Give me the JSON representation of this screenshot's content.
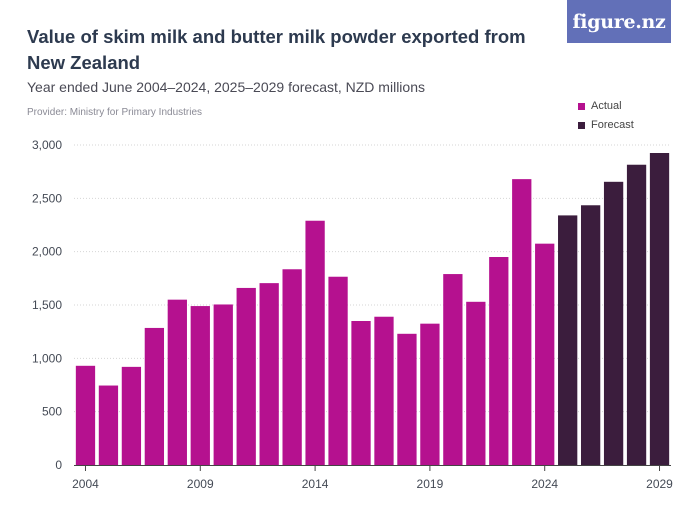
{
  "header": {
    "title": "Value of skim milk and butter milk powder exported from New Zealand",
    "subtitle": "Year ended June 2004–2024, 2025–2029 forecast, NZD millions",
    "provider": "Provider: Ministry for Primary Industries"
  },
  "logo": {
    "text": "figure.nz",
    "color": "#6270b8"
  },
  "legend": {
    "placement": "top-right",
    "items": [
      {
        "label": "Actual",
        "color": "#b5118f"
      },
      {
        "label": "Forecast",
        "color": "#3b1d3d"
      }
    ]
  },
  "chart_data": {
    "type": "bar",
    "title": "Value of skim milk and butter milk powder exported from New Zealand",
    "subtitle": "Year ended June 2004–2024, 2025–2029 forecast, NZD millions",
    "xlabel": "",
    "ylabel": "",
    "ylim": [
      0,
      3000
    ],
    "yticks": [
      "0",
      "500",
      "1,000",
      "1,500",
      "2,000",
      "2,500",
      "3,000"
    ],
    "ytick_values": [
      0,
      500,
      1000,
      1500,
      2000,
      2500,
      3000
    ],
    "xticks": [
      "2004",
      "2009",
      "2014",
      "2019",
      "2024",
      "2029"
    ],
    "grid": true,
    "categories": [
      "2004",
      "2005",
      "2006",
      "2007",
      "2008",
      "2009",
      "2010",
      "2011",
      "2012",
      "2013",
      "2014",
      "2015",
      "2016",
      "2017",
      "2018",
      "2019",
      "2020",
      "2021",
      "2022",
      "2023",
      "2024",
      "2025",
      "2026",
      "2027",
      "2028",
      "2029"
    ],
    "values": [
      930,
      745,
      920,
      1285,
      1550,
      1490,
      1505,
      1660,
      1705,
      1835,
      2290,
      1765,
      1350,
      1390,
      1230,
      1325,
      1790,
      1530,
      1950,
      2680,
      2075,
      2340,
      2435,
      2655,
      2815,
      2925
    ],
    "series_type": [
      "Actual",
      "Actual",
      "Actual",
      "Actual",
      "Actual",
      "Actual",
      "Actual",
      "Actual",
      "Actual",
      "Actual",
      "Actual",
      "Actual",
      "Actual",
      "Actual",
      "Actual",
      "Actual",
      "Actual",
      "Actual",
      "Actual",
      "Actual",
      "Actual",
      "Forecast",
      "Forecast",
      "Forecast",
      "Forecast",
      "Forecast"
    ],
    "colors": {
      "Actual": "#b5118f",
      "Forecast": "#3b1d3d"
    }
  }
}
